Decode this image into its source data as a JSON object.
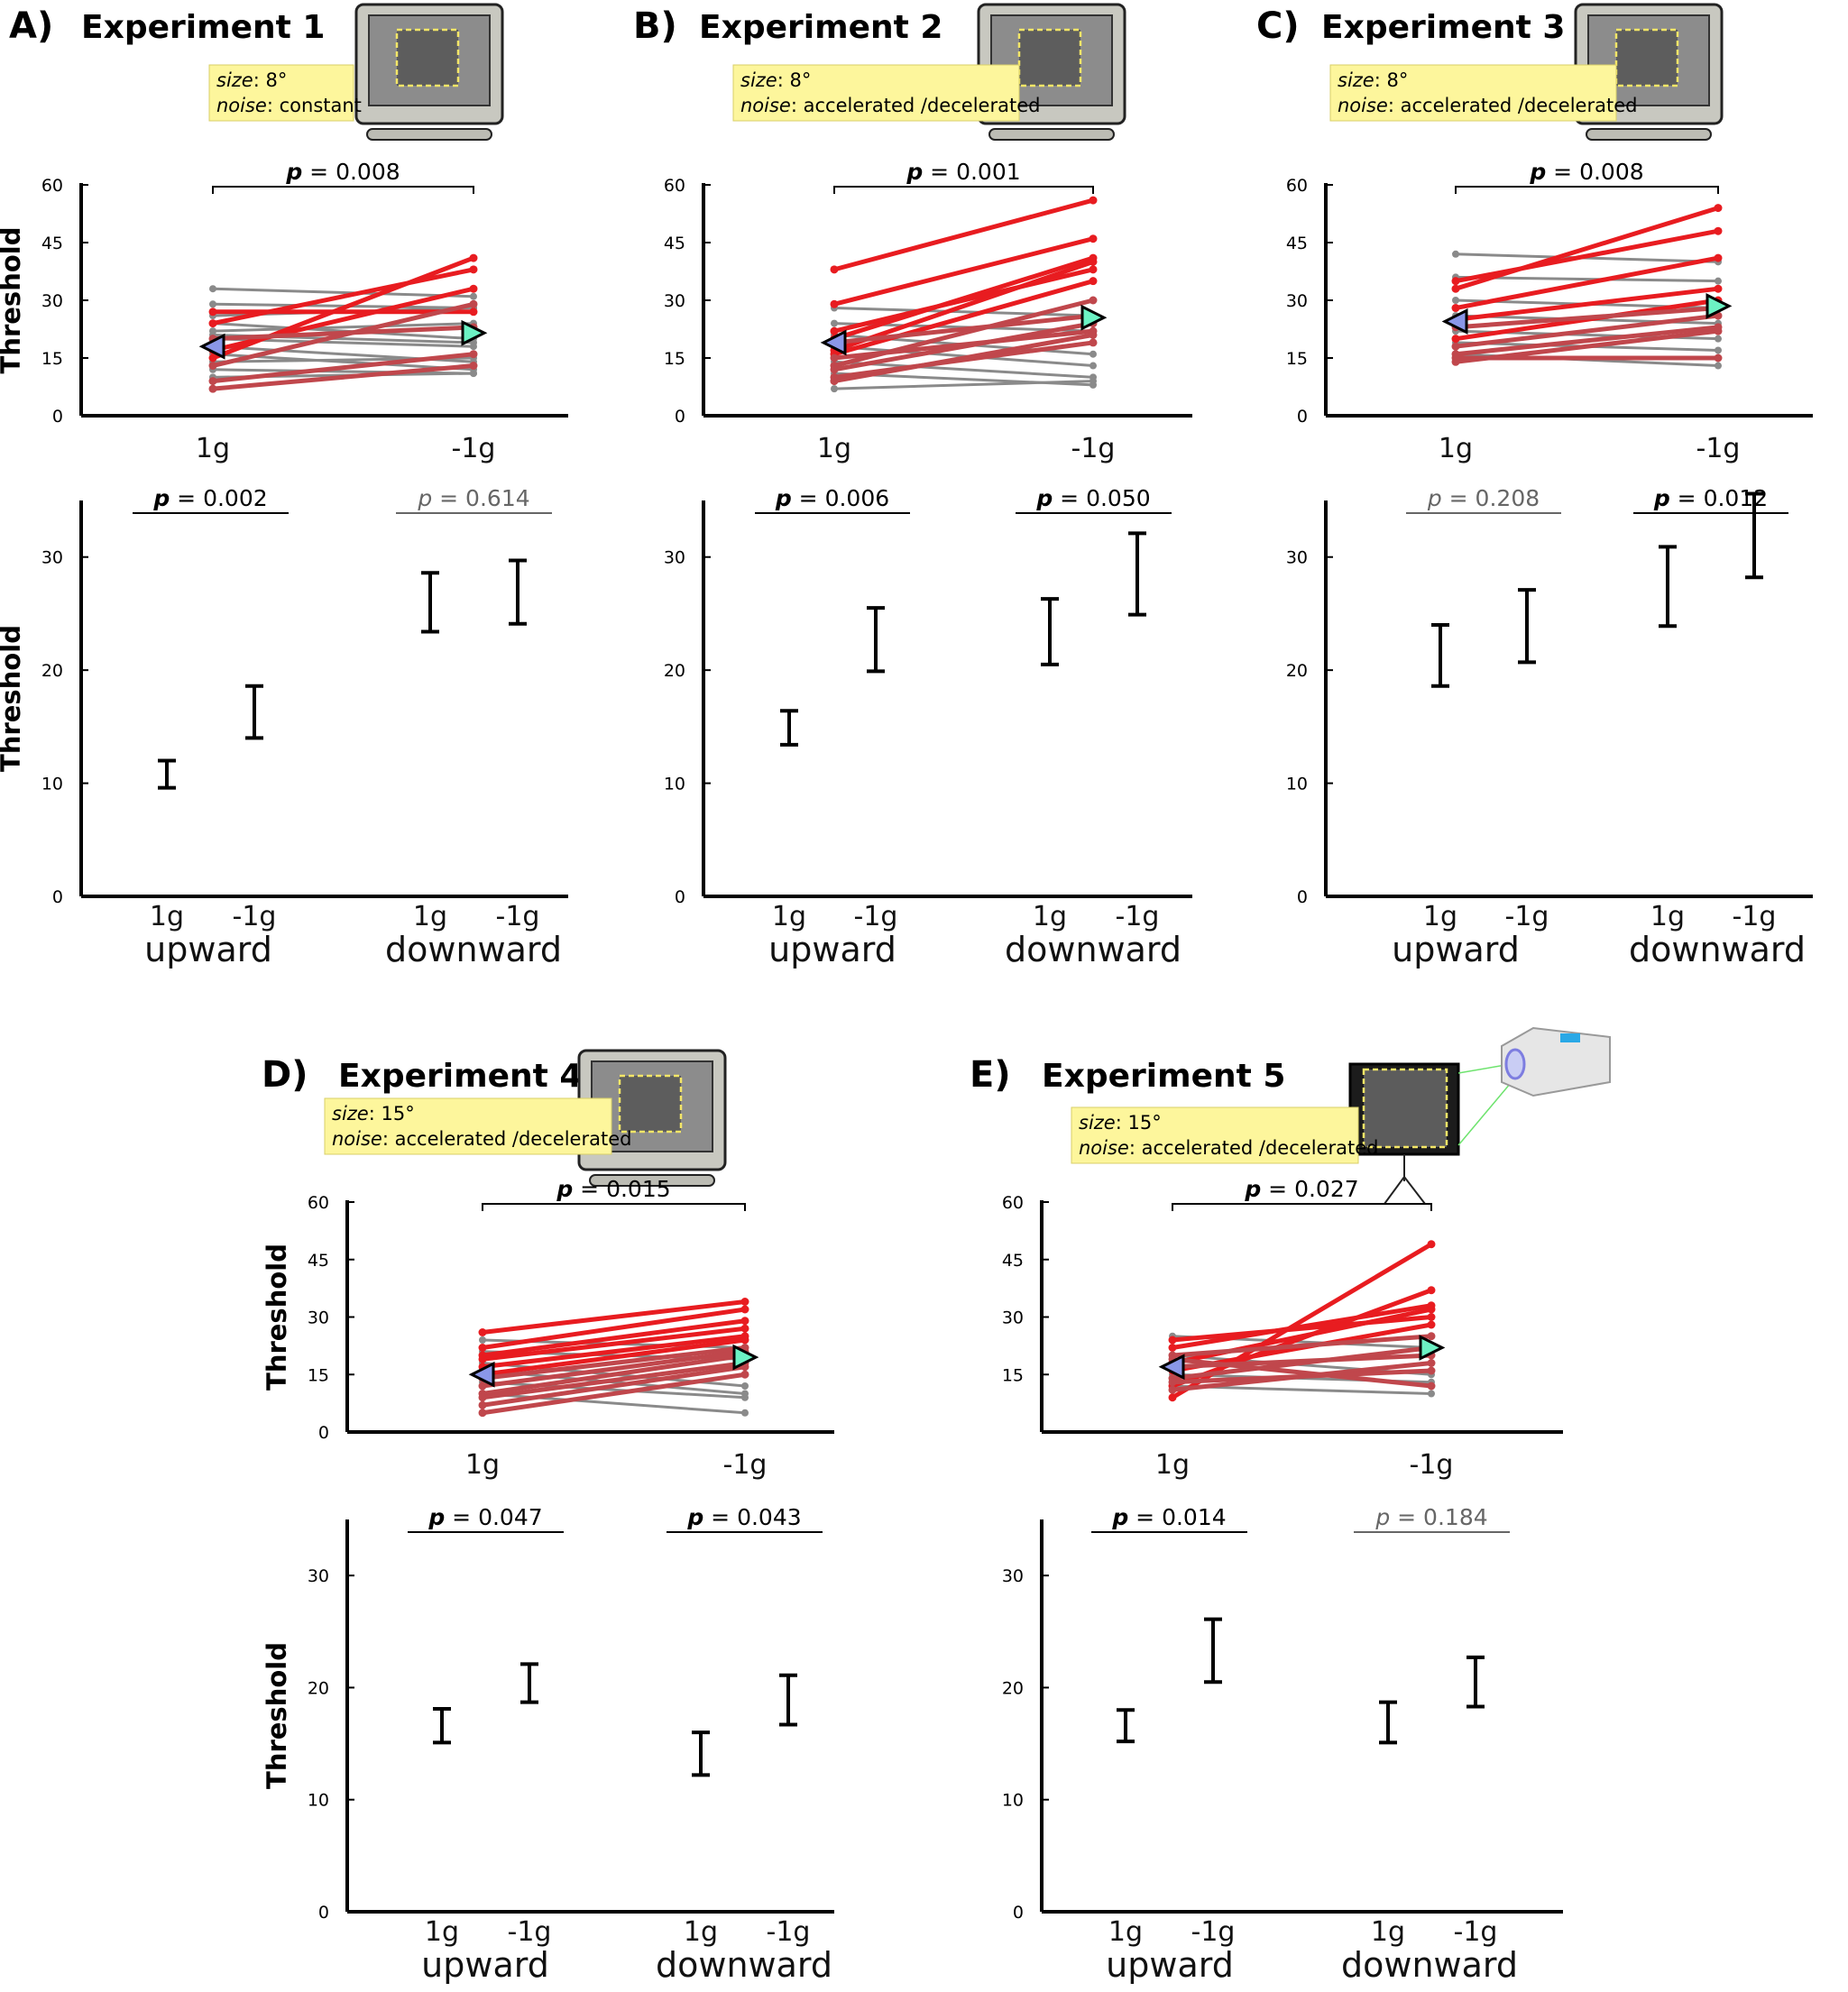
{
  "chart_data": [
    {
      "panel_label": "A)",
      "title": "Experiment 1",
      "size_label": "size",
      "size_value": ": 8°",
      "noise_label": "noise",
      "noise_value": ": constant",
      "display": "monitor",
      "paired": {
        "type": "line",
        "ylabel": "Threshold",
        "ylim": [
          0,
          60
        ],
        "yticks": [
          "0",
          "15",
          "30",
          "45",
          "60"
        ],
        "categories": [
          "1g",
          "-1g"
        ],
        "p_label": "p",
        "p_value": " = 0.008",
        "mean_markers": [
          18,
          21.5
        ],
        "subjects_gray": [
          [
            33,
            31
          ],
          [
            29,
            28
          ],
          [
            26,
            28
          ],
          [
            24,
            20
          ],
          [
            22,
            24
          ],
          [
            21,
            19
          ],
          [
            20,
            18
          ],
          [
            18,
            14
          ],
          [
            16,
            12
          ],
          [
            14,
            15
          ],
          [
            12,
            11
          ],
          [
            10,
            11
          ]
        ],
        "subjects_red": [
          [
            15,
            41
          ],
          [
            24,
            38
          ],
          [
            17,
            33
          ],
          [
            27,
            27
          ],
          [
            13,
            29
          ],
          [
            20,
            23
          ],
          [
            9,
            16
          ],
          [
            7,
            13
          ]
        ]
      },
      "bars": {
        "type": "bar",
        "ylabel": "Threshold",
        "ylim": [
          0,
          35
        ],
        "yticks": [
          "0",
          "10",
          "20",
          "30"
        ],
        "categories": [
          "1g",
          "-1g",
          "1g",
          "-1g"
        ],
        "groups": [
          "upward",
          "downward"
        ],
        "values": [
          10.8,
          16.3,
          26.0,
          26.9
        ],
        "errors": [
          1.2,
          2.3,
          2.6,
          2.8
        ],
        "comparisons": [
          {
            "label": "p",
            "value": " = 0.002",
            "significant": true
          },
          {
            "label": "p",
            "value": " = 0.614",
            "significant": false
          }
        ]
      }
    },
    {
      "panel_label": "B)",
      "title": "Experiment 2",
      "size_label": "size",
      "size_value": ": 8°",
      "noise_label": "noise",
      "noise_value": ": accelerated /decelerated",
      "display": "monitor",
      "paired": {
        "type": "line",
        "ylabel": "",
        "ylim": [
          0,
          60
        ],
        "yticks": [
          "0",
          "15",
          "30",
          "45",
          "60"
        ],
        "categories": [
          "1g",
          "-1g"
        ],
        "p_label": "p",
        "p_value": " = 0.001",
        "mean_markers": [
          19,
          25.5
        ],
        "subjects_gray": [
          [
            28,
            26
          ],
          [
            24,
            22
          ],
          [
            21,
            16
          ],
          [
            18,
            13
          ],
          [
            14,
            10
          ],
          [
            11,
            8
          ],
          [
            7,
            9
          ]
        ],
        "subjects_red": [
          [
            38,
            56
          ],
          [
            29,
            46
          ],
          [
            20,
            41
          ],
          [
            17,
            40
          ],
          [
            22,
            38
          ],
          [
            16,
            35
          ],
          [
            13,
            30
          ],
          [
            19,
            26
          ],
          [
            12,
            24
          ],
          [
            15,
            22
          ],
          [
            10,
            19
          ],
          [
            9,
            21
          ]
        ]
      },
      "bars": {
        "type": "bar",
        "ylabel": "",
        "ylim": [
          0,
          35
        ],
        "yticks": [
          "0",
          "10",
          "20",
          "30"
        ],
        "categories": [
          "1g",
          "-1g",
          "1g",
          "-1g"
        ],
        "groups": [
          "upward",
          "downward"
        ],
        "values": [
          14.9,
          22.7,
          23.4,
          28.5
        ],
        "errors": [
          1.5,
          2.8,
          2.9,
          3.6
        ],
        "comparisons": [
          {
            "label": "p",
            "value": " = 0.006",
            "significant": true
          },
          {
            "label": "p",
            "value": " = 0.050",
            "significant": true
          }
        ]
      }
    },
    {
      "panel_label": "C)",
      "title": "Experiment 3",
      "size_label": "size",
      "size_value": ": 8°",
      "noise_label": "noise",
      "noise_value": ": accelerated /decelerated",
      "display": "monitor",
      "paired": {
        "type": "line",
        "ylabel": "",
        "ylim": [
          0,
          60
        ],
        "yticks": [
          "0",
          "15",
          "30",
          "45",
          "60"
        ],
        "categories": [
          "1g",
          "-1g"
        ],
        "p_label": "p",
        "p_value": " = 0.008",
        "mean_markers": [
          24.5,
          28.5
        ],
        "subjects_gray": [
          [
            42,
            40
          ],
          [
            36,
            35
          ],
          [
            30,
            28
          ],
          [
            26,
            24
          ],
          [
            22,
            20
          ],
          [
            19,
            17
          ],
          [
            16,
            13
          ]
        ],
        "subjects_red": [
          [
            33,
            54
          ],
          [
            35,
            48
          ],
          [
            28,
            41
          ],
          [
            25,
            33
          ],
          [
            20,
            30
          ],
          [
            23,
            28
          ],
          [
            18,
            26
          ],
          [
            14,
            22
          ],
          [
            16,
            23
          ],
          [
            15,
            15
          ]
        ]
      },
      "bars": {
        "type": "bar",
        "ylabel": "",
        "ylim": [
          0,
          35
        ],
        "yticks": [
          "0",
          "10",
          "20",
          "30"
        ],
        "categories": [
          "1g",
          "-1g",
          "1g",
          "-1g"
        ],
        "groups": [
          "upward",
          "downward"
        ],
        "values": [
          21.3,
          23.9,
          27.4,
          31.9
        ],
        "errors": [
          2.7,
          3.2,
          3.5,
          3.7
        ],
        "comparisons": [
          {
            "label": "p",
            "value": " = 0.208",
            "significant": false
          },
          {
            "label": "p",
            "value": " = 0.012",
            "significant": true
          }
        ]
      }
    },
    {
      "panel_label": "D)",
      "title": "Experiment 4",
      "size_label": "size",
      "size_value": ": 15°",
      "noise_label": "noise",
      "noise_value": ": accelerated /decelerated",
      "display": "monitor",
      "paired": {
        "type": "line",
        "ylabel": "Threshold",
        "ylim": [
          0,
          60
        ],
        "yticks": [
          "0",
          "15",
          "30",
          "45",
          "60"
        ],
        "categories": [
          "1g",
          "-1g"
        ],
        "p_label": "p",
        "p_value": " = 0.015",
        "mean_markers": [
          15,
          19.5
        ],
        "subjects_gray": [
          [
            24,
            22
          ],
          [
            21,
            19
          ],
          [
            18,
            12
          ],
          [
            16,
            10
          ],
          [
            13,
            9
          ],
          [
            10,
            5
          ]
        ],
        "subjects_red": [
          [
            26,
            34
          ],
          [
            22,
            32
          ],
          [
            20,
            29
          ],
          [
            19,
            27
          ],
          [
            17,
            25
          ],
          [
            15,
            24
          ],
          [
            14,
            22
          ],
          [
            12,
            21
          ],
          [
            10,
            20
          ],
          [
            9,
            18
          ],
          [
            7,
            17
          ],
          [
            5,
            15
          ]
        ]
      },
      "bars": {
        "type": "bar",
        "ylabel": "Threshold",
        "ylim": [
          0,
          35
        ],
        "yticks": [
          "0",
          "10",
          "20",
          "30"
        ],
        "categories": [
          "1g",
          "-1g",
          "1g",
          "-1g"
        ],
        "groups": [
          "upward",
          "downward"
        ],
        "values": [
          16.6,
          20.4,
          14.1,
          18.9
        ],
        "errors": [
          1.5,
          1.7,
          1.9,
          2.2
        ],
        "comparisons": [
          {
            "label": "p",
            "value": " = 0.047",
            "significant": true
          },
          {
            "label": "p",
            "value": " = 0.043",
            "significant": true
          }
        ]
      }
    },
    {
      "panel_label": "E)",
      "title": "Experiment 5",
      "size_label": "size",
      "size_value": ": 15°",
      "noise_label": "noise",
      "noise_value": ": accelerated /decelerated",
      "display": "projector",
      "paired": {
        "type": "line",
        "ylabel": "",
        "ylim": [
          0,
          60
        ],
        "yticks": [
          "",
          "15",
          "30",
          "45",
          "60"
        ],
        "categories": [
          "1g",
          "-1g"
        ],
        "p_label": "p",
        "p_value": " = 0.027",
        "mean_markers": [
          17,
          22
        ],
        "subjects_gray": [
          [
            25,
            22
          ],
          [
            20,
            15
          ],
          [
            15,
            13
          ],
          [
            12,
            10
          ]
        ],
        "subjects_red": [
          [
            9,
            49
          ],
          [
            12,
            37
          ],
          [
            22,
            33
          ],
          [
            18,
            32
          ],
          [
            24,
            30
          ],
          [
            16,
            28
          ],
          [
            20,
            25
          ],
          [
            14,
            22
          ],
          [
            17,
            20
          ],
          [
            11,
            18
          ],
          [
            13,
            16
          ],
          [
            19,
            12
          ]
        ]
      },
      "bars": {
        "type": "bar",
        "ylabel": "",
        "ylim": [
          0,
          35
        ],
        "yticks": [
          "0",
          "10",
          "20",
          "30"
        ],
        "categories": [
          "1g",
          "-1g",
          "1g",
          "-1g"
        ],
        "groups": [
          "upward",
          "downward"
        ],
        "values": [
          16.6,
          23.3,
          16.9,
          20.5
        ],
        "errors": [
          1.4,
          2.8,
          1.8,
          2.2
        ],
        "comparisons": [
          {
            "label": "p",
            "value": " = 0.014",
            "significant": true
          },
          {
            "label": "p",
            "value": " = 0.184",
            "significant": false
          }
        ]
      }
    }
  ],
  "colors": {
    "bar_up_1g": "#7f96e3",
    "bar_up_m1g": "#6aeec6",
    "bar_down_1g": "#b0cbff",
    "bar_down_m1g": "#82ffe2",
    "subject_red": "#e81c20",
    "subject_darkred": "#c0474c",
    "subject_gray": "#8a8a8a",
    "marker_1g": "#8a97e8",
    "marker_m1g": "#6cf2c4",
    "info_box": "#fdf69c",
    "p_nonsig": "#666666"
  }
}
